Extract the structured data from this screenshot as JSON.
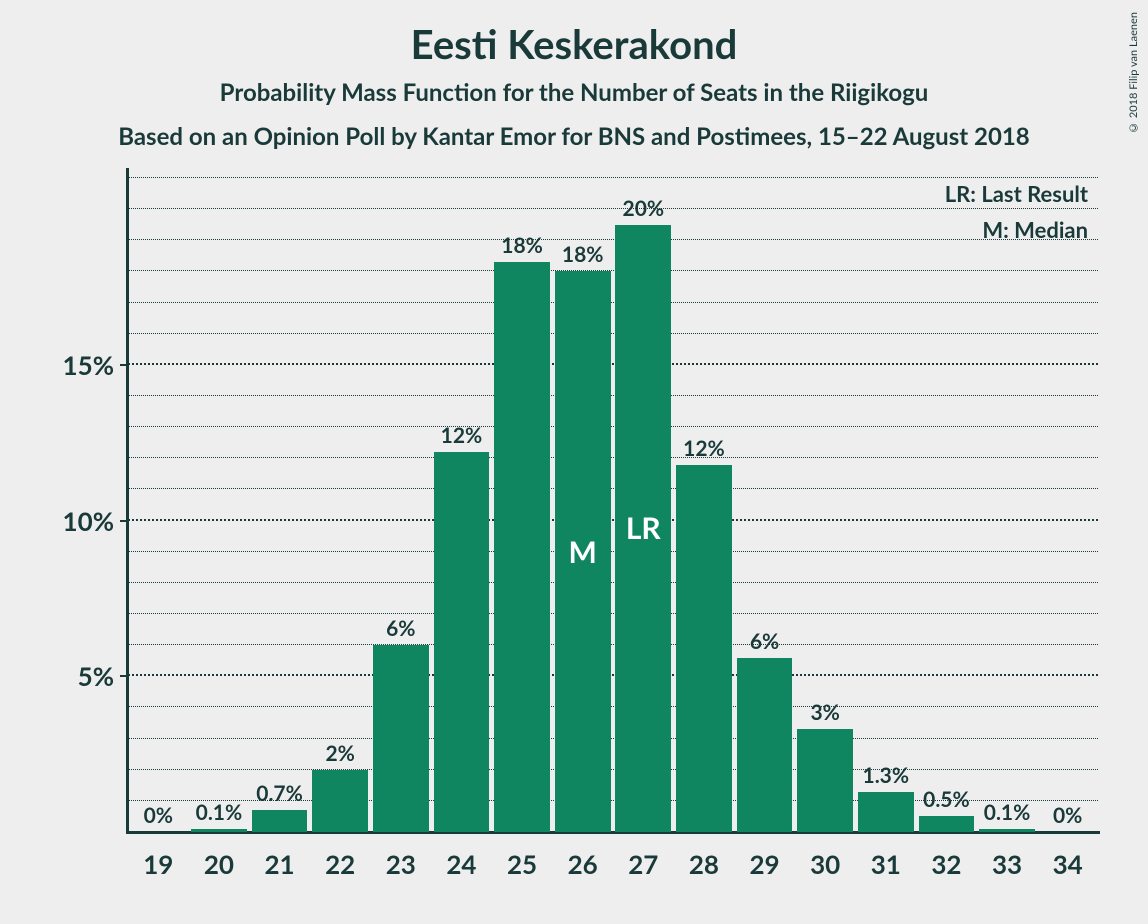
{
  "title": "Eesti Keskerakond",
  "subtitle1": "Probability Mass Function for the Number of Seats in the Riigikogu",
  "subtitle2": "Based on an Opinion Poll by Kantar Emor for BNS and Postimees, 15–22 August 2018",
  "copyright": "© 2018 Filip van Laenen",
  "legend": {
    "lr": "LR: Last Result",
    "m": "M: Median"
  },
  "chart": {
    "type": "bar",
    "background_color": "#eeeeee",
    "bar_color": "#0f8560",
    "axis_color": "#1a3a3a",
    "text_color": "#1a3a3a",
    "bar_inner_text_color": "#ffffff",
    "title_fontsize": 40,
    "subtitle_fontsize": 24,
    "legend_fontsize": 22,
    "axis_label_fontsize": 26,
    "bar_label_fontsize": 21,
    "inner_label_fontsize": 30,
    "ylim": [
      0,
      0.21
    ],
    "y_major_ticks": [
      0.05,
      0.1,
      0.15
    ],
    "y_major_labels": [
      "5%",
      "10%",
      "15%"
    ],
    "y_minor_step": 0.01,
    "grid_major_width": 2,
    "grid_minor_width": 1,
    "bar_width_ratio": 0.92,
    "categories": [
      19,
      20,
      21,
      22,
      23,
      24,
      25,
      26,
      27,
      28,
      29,
      30,
      31,
      32,
      33,
      34
    ],
    "values": [
      0.0,
      0.001,
      0.007,
      0.02,
      0.06,
      0.122,
      0.183,
      0.18,
      0.195,
      0.118,
      0.056,
      0.033,
      0.013,
      0.005,
      0.001,
      0.0
    ],
    "value_labels": [
      "0%",
      "0.1%",
      "0.7%",
      "2%",
      "6%",
      "12%",
      "18%",
      "18%",
      "20%",
      "12%",
      "6%",
      "3%",
      "1.3%",
      "0.5%",
      "0.1%",
      "0%"
    ],
    "inner_labels": {
      "26": "M",
      "27": "LR"
    }
  }
}
